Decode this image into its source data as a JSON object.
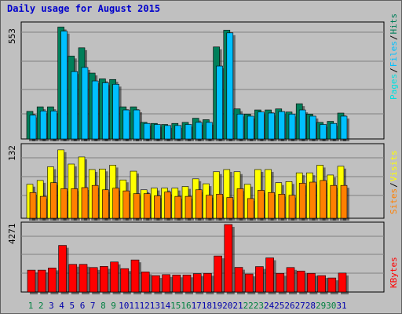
{
  "title": "Daily usage for August 2015",
  "colors": {
    "hits": "#007f5a",
    "files": "#00c0ff",
    "pages": "#00e0e0",
    "visits": "#ffff00",
    "sites": "#ff8000",
    "kbytes": "#ff0000",
    "weekend_day": "#008040",
    "weekday": "#0000aa",
    "title": "#0000cc",
    "kbytes_legend": "#ff0000",
    "legend_sep": "#000000"
  },
  "chart_data": [
    {
      "type": "bar",
      "title": "Daily usage for August 2015",
      "categories": [
        "1",
        "2",
        "3",
        "4",
        "5",
        "6",
        "7",
        "8",
        "9",
        "10",
        "11",
        "12",
        "13",
        "14",
        "15",
        "16",
        "17",
        "18",
        "19",
        "20",
        "21",
        "22",
        "23",
        "24",
        "25",
        "26",
        "27",
        "28",
        "29",
        "30",
        "31"
      ],
      "weekend_days": [
        "1",
        "2",
        "8",
        "9",
        "15",
        "16",
        "22",
        "23",
        "29",
        "30"
      ],
      "ymax_label": "553",
      "ylim": [
        0,
        553
      ],
      "legend": [
        "Pages",
        "Files",
        "Hits"
      ],
      "series": [
        {
          "name": "Hits",
          "values": [
            133,
            155,
            155,
            540,
            400,
            440,
            318,
            290,
            287,
            155,
            155,
            80,
            75,
            70,
            75,
            80,
            100,
            93,
            444,
            525,
            145,
            120,
            140,
            140,
            145,
            130,
            170,
            120,
            80,
            85,
            125
          ]
        },
        {
          "name": "Files",
          "values": [
            115,
            135,
            135,
            520,
            325,
            345,
            280,
            271,
            264,
            140,
            140,
            75,
            70,
            65,
            65,
            70,
            80,
            80,
            352,
            512,
            120,
            110,
            130,
            125,
            132,
            120,
            140,
            110,
            70,
            75,
            110
          ]
        },
        {
          "name": "Pages",
          "values": [
            102,
            124,
            124,
            404,
            306,
            326,
            266,
            258,
            250,
            128,
            128,
            58,
            52,
            50,
            50,
            58,
            65,
            65,
            277,
            494,
            105,
            95,
            112,
            112,
            120,
            108,
            124,
            95,
            65,
            60,
            105
          ]
        }
      ]
    },
    {
      "type": "bar",
      "ymax_label": "132",
      "ylim": [
        0,
        132
      ],
      "legend": [
        "Sites",
        "Visits"
      ],
      "series": [
        {
          "name": "Visits",
          "values": [
            62,
            69,
            94,
            125,
            99,
            112,
            89,
            90,
            97,
            70,
            86,
            52,
            55,
            55,
            55,
            58,
            72,
            63,
            85,
            89,
            85,
            62,
            89,
            89,
            65,
            67,
            83,
            83,
            97,
            79,
            95
          ]
        },
        {
          "name": "Sites",
          "values": [
            47,
            40,
            65,
            54,
            54,
            56,
            60,
            52,
            55,
            50,
            45,
            45,
            41,
            48,
            40,
            40,
            52,
            42,
            44,
            38,
            54,
            36,
            51,
            47,
            44,
            42,
            64,
            66,
            69,
            60,
            60
          ]
        }
      ]
    },
    {
      "type": "bar",
      "ymax_label": "4271",
      "ylim": [
        0,
        4271
      ],
      "legend": [
        "KBytes"
      ],
      "series": [
        {
          "name": "KBytes",
          "values": [
            1385,
            1385,
            1520,
            2950,
            1750,
            1750,
            1550,
            1620,
            1900,
            1480,
            2030,
            1270,
            1040,
            1100,
            1080,
            1080,
            1160,
            1180,
            2280,
            4271,
            1560,
            1140,
            1610,
            2160,
            1180,
            1550,
            1330,
            1180,
            1040,
            890,
            1200
          ]
        }
      ]
    }
  ]
}
